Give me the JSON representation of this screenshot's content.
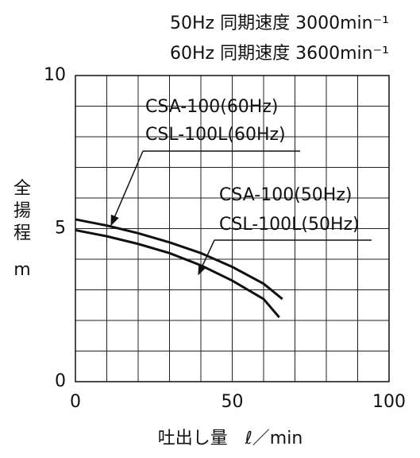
{
  "chart_data": {
    "type": "line",
    "subtitles": [
      "50Hz 同期速度 3000min⁻¹",
      "60Hz 同期速度 3600min⁻¹"
    ],
    "y_label": [
      "全",
      "揚",
      "程",
      "m"
    ],
    "x_label": "吐出し量　ℓ／min",
    "xlim": [
      0,
      100
    ],
    "ylim": [
      0,
      10
    ],
    "xticks": [
      0,
      50,
      100
    ],
    "yticks": [
      0,
      5,
      10
    ],
    "xgrid": [
      0,
      10,
      20,
      30,
      40,
      50,
      60,
      70,
      80,
      90,
      100
    ],
    "ygrid": [
      0,
      1,
      2,
      3,
      4,
      5,
      6,
      7,
      8,
      9,
      10
    ],
    "grid": true,
    "series": [
      {
        "labels": [
          "CSA-100(60Hz)",
          "CSL-100L(60Hz)"
        ],
        "color": "#111111",
        "x": [
          0,
          10,
          20,
          30,
          40,
          50,
          60,
          66
        ],
        "values": [
          5.3,
          5.1,
          4.85,
          4.55,
          4.2,
          3.75,
          3.2,
          2.7
        ]
      },
      {
        "labels": [
          "CSA-100(50Hz)",
          "CSL-100L(50Hz)"
        ],
        "color": "#111111",
        "x": [
          0,
          10,
          20,
          30,
          40,
          50,
          60,
          65
        ],
        "values": [
          4.95,
          4.75,
          4.5,
          4.2,
          3.8,
          3.3,
          2.7,
          2.1
        ]
      }
    ]
  }
}
